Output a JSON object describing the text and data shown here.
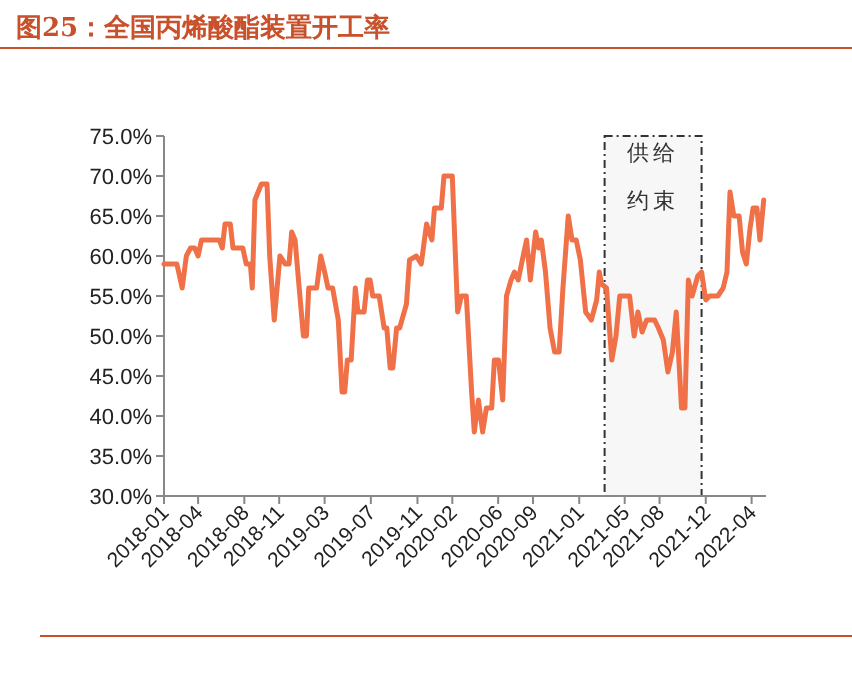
{
  "chart_data": {
    "type": "line",
    "title": "图25：全国丙烯酸酯装置开工率",
    "xlim": [
      "2018-01-01",
      "2022-05-09"
    ],
    "xticks": [
      {
        "value": "2018-01-01",
        "label": "2018-01"
      },
      {
        "value": "2018-04-01",
        "label": "2018-04"
      },
      {
        "value": "2018-08-01",
        "label": "2018-08"
      },
      {
        "value": "2018-11-01",
        "label": "2018-11"
      },
      {
        "value": "2019-03-01",
        "label": "2019-03"
      },
      {
        "value": "2019-07-01",
        "label": "2019-07"
      },
      {
        "value": "2019-11-01",
        "label": "2019-11"
      },
      {
        "value": "2020-02-01",
        "label": "2020-02"
      },
      {
        "value": "2020-06-01",
        "label": "2020-06"
      },
      {
        "value": "2020-09-01",
        "label": "2020-09"
      },
      {
        "value": "2021-01-01",
        "label": "2021-01"
      },
      {
        "value": "2021-05-01",
        "label": "2021-05"
      },
      {
        "value": "2021-08-01",
        "label": "2021-08"
      },
      {
        "value": "2021-12-01",
        "label": "2021-12"
      },
      {
        "value": "2022-04-01",
        "label": "2022-04"
      }
    ],
    "ylim": [
      30,
      75
    ],
    "yticks": [
      {
        "value": 30,
        "label": "30.0%"
      },
      {
        "value": 35,
        "label": "35.0%"
      },
      {
        "value": 40,
        "label": "40.0%"
      },
      {
        "value": 45,
        "label": "45.0%"
      },
      {
        "value": 50,
        "label": "50.0%"
      },
      {
        "value": 55,
        "label": "55.0%"
      },
      {
        "value": 60,
        "label": "60.0%"
      },
      {
        "value": 65,
        "label": "65.0%"
      },
      {
        "value": 70,
        "label": "70.0%"
      },
      {
        "value": 75,
        "label": "75.0%"
      }
    ],
    "bands": [
      {
        "axis": "x",
        "from": "2021-03-09",
        "to": "2021-11-20",
        "label": "供给约束",
        "color": "#333333"
      }
    ],
    "series": [
      {
        "color": "#f07048",
        "x": [
          "2018-01-01",
          "2018-02-04",
          "2018-02-18",
          "2018-03-01",
          "2018-03-12",
          "2018-03-23",
          "2018-04-01",
          "2018-04-10",
          "2018-05-27",
          "2018-06-04",
          "2018-06-11",
          "2018-06-25",
          "2018-07-02",
          "2018-07-28",
          "2018-08-06",
          "2018-08-17",
          "2018-08-22",
          "2018-08-29",
          "2018-09-15",
          "2018-09-30",
          "2018-10-07",
          "2018-10-19",
          "2018-11-03",
          "2018-11-17",
          "2018-11-27",
          "2018-12-04",
          "2018-12-13",
          "2018-12-22",
          "2019-01-04",
          "2019-01-12",
          "2019-01-18",
          "2019-02-08",
          "2019-02-19",
          "2019-03-01",
          "2019-03-10",
          "2019-03-22",
          "2019-04-06",
          "2019-04-16",
          "2019-04-23",
          "2019-04-30",
          "2019-05-10",
          "2019-05-21",
          "2019-05-28",
          "2019-06-13",
          "2019-06-22",
          "2019-06-29",
          "2019-07-06",
          "2019-07-23",
          "2019-08-05",
          "2019-08-12",
          "2019-08-21",
          "2019-08-28",
          "2019-09-07",
          "2019-09-15",
          "2019-10-03",
          "2019-10-11",
          "2019-10-29",
          "2019-11-11",
          "2019-11-25",
          "2019-12-09",
          "2019-12-16",
          "2020-01-03",
          "2020-01-10",
          "2020-02-01",
          "2020-02-15",
          "2020-02-25",
          "2020-03-09",
          "2020-03-23",
          "2020-03-30",
          "2020-04-10",
          "2020-04-21",
          "2020-05-01",
          "2020-05-15",
          "2020-05-22",
          "2020-06-02",
          "2020-06-13",
          "2020-06-23",
          "2020-07-05",
          "2020-07-14",
          "2020-07-24",
          "2020-08-06",
          "2020-08-15",
          "2020-08-25",
          "2020-09-08",
          "2020-09-16",
          "2020-09-23",
          "2020-10-04",
          "2020-10-16",
          "2020-10-28",
          "2020-11-09",
          "2020-11-19",
          "2020-12-03",
          "2020-12-13",
          "2020-12-24",
          "2021-01-04",
          "2021-01-18",
          "2021-02-02",
          "2021-02-16",
          "2021-02-23",
          "2021-03-01",
          "2021-03-14",
          "2021-03-28",
          "2021-04-08",
          "2021-04-18",
          "2021-05-14",
          "2021-05-26",
          "2021-06-05",
          "2021-06-16",
          "2021-06-28",
          "2021-07-19",
          "2021-07-29",
          "2021-08-11",
          "2021-08-23",
          "2021-09-04",
          "2021-09-14",
          "2021-09-28",
          "2021-10-07",
          "2021-10-16",
          "2021-10-26",
          "2021-11-10",
          "2021-11-20",
          "2021-12-01",
          "2021-12-11",
          "2022-01-02",
          "2022-01-16",
          "2022-01-26",
          "2022-02-03",
          "2022-02-13",
          "2022-02-27",
          "2022-03-08",
          "2022-03-18",
          "2022-03-28",
          "2022-04-05",
          "2022-04-15",
          "2022-04-23",
          "2022-05-03"
        ],
        "values": [
          59,
          59,
          56,
          60,
          61,
          61,
          60,
          62,
          62,
          61,
          64,
          64,
          61,
          61,
          59,
          59,
          56,
          67,
          69,
          69,
          60,
          52,
          60,
          59,
          59,
          63,
          62,
          57,
          50,
          50,
          56,
          56,
          60,
          58,
          56,
          56,
          52,
          43,
          43,
          47,
          47,
          56,
          53,
          53,
          57,
          57,
          55,
          55,
          51,
          51,
          46,
          46,
          51,
          51,
          54,
          59.5,
          60,
          59,
          64,
          62,
          66,
          66,
          70,
          70,
          53,
          55,
          55,
          43,
          38,
          42,
          38,
          41,
          41,
          47,
          47,
          42,
          55,
          57,
          58,
          57,
          60,
          62,
          57,
          63,
          61,
          62,
          58,
          51,
          48,
          48,
          56,
          65,
          62,
          62,
          59.5,
          53,
          52,
          54.5,
          58,
          56.5,
          56,
          47,
          50,
          55,
          55,
          50,
          53,
          50.5,
          52,
          52,
          51,
          49.5,
          45.5,
          48,
          53,
          41,
          41,
          57,
          55,
          57.5,
          58,
          54.5,
          55,
          55,
          56,
          58,
          68,
          65,
          65,
          60.5,
          59,
          63.5,
          66,
          66,
          62,
          67
        ]
      }
    ]
  }
}
